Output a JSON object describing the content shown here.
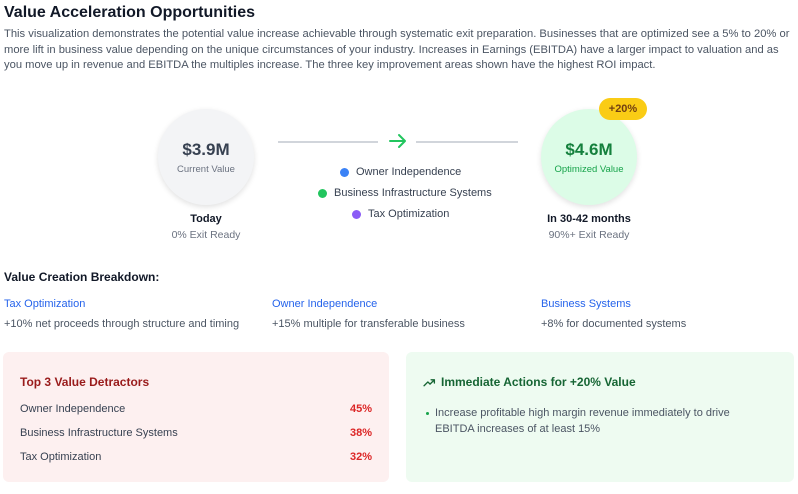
{
  "header": {
    "title": "Value Acceleration Opportunities",
    "description": "This visualization demonstrates the potential value increase achievable through systematic exit preparation. Businesses that are optimized see a 5% to 20% or more lift in business value depending on the unique circumstances of your industry. Increases in Earnings (EBITDA) have a larger impact to valuation and as you move up in revenue and EBITDA the multiples increase. The three key improvement areas shown have the highest ROI impact."
  },
  "current": {
    "value": "$3.9M",
    "label": "Current Value",
    "when": "Today",
    "status": "0% Exit Ready"
  },
  "optimized": {
    "value": "$4.6M",
    "label": "Optimized Value",
    "badge": "+20%",
    "when": "In 30-42 months",
    "status": "90%+ Exit Ready"
  },
  "legend": [
    {
      "label": "Owner Independence",
      "color": "#3b82f6"
    },
    {
      "label": "Business Infrastructure Systems",
      "color": "#22c55e"
    },
    {
      "label": "Tax Optimization",
      "color": "#8b5cf6"
    }
  ],
  "breakdown": {
    "title": "Value Creation Breakdown:",
    "items": [
      {
        "title": "Tax Optimization",
        "desc": "+10% net proceeds through structure and timing"
      },
      {
        "title": "Owner Independence",
        "desc": "+15% multiple for transferable business"
      },
      {
        "title": "Business Systems",
        "desc": "+8% for documented systems"
      }
    ]
  },
  "detractors": {
    "title": "Top 3 Value Detractors",
    "rows": [
      {
        "label": "Owner Independence",
        "pct": "45%"
      },
      {
        "label": "Business Infrastructure Systems",
        "pct": "38%"
      },
      {
        "label": "Tax Optimization",
        "pct": "32%"
      }
    ]
  },
  "actions": {
    "title": "Immediate Actions for +20% Value",
    "icon": "trending-up-icon",
    "items": [
      "Increase profitable high margin revenue immediately to drive EBITDA increases of at least 15%"
    ]
  }
}
